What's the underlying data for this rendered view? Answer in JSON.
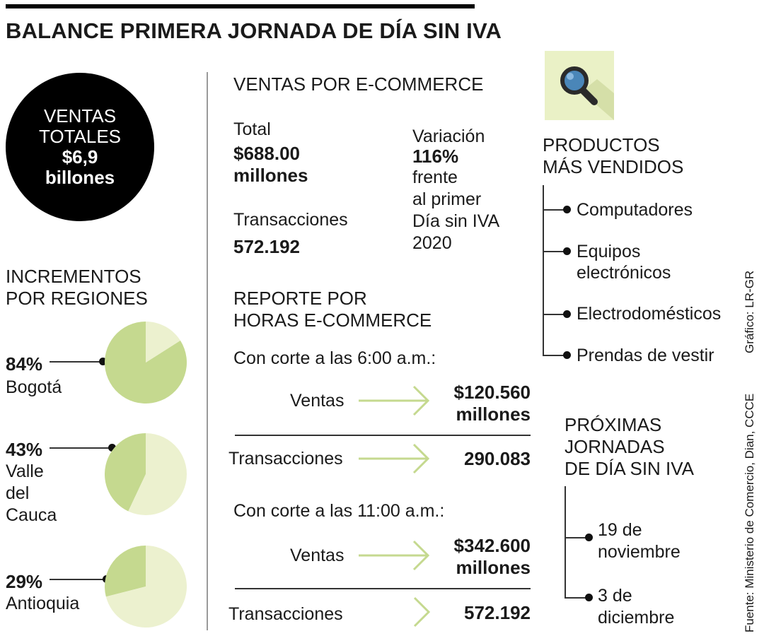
{
  "title": "BALANCE PRIMERA JORNADA DE DÍA SIN IVA",
  "total_sales": {
    "line1": "VENTAS",
    "line2": "TOTALES",
    "amount": "$6,9",
    "unit": "billones"
  },
  "regions": {
    "heading_1": "INCREMENTOS",
    "heading_2": "POR REGIONES",
    "items": [
      {
        "pct": "84%",
        "name_lines": [
          "Bogotá"
        ]
      },
      {
        "pct": "43%",
        "name_lines": [
          "Valle",
          "del",
          "Cauca"
        ]
      },
      {
        "pct": "29%",
        "name_lines": [
          "Antioquia"
        ]
      }
    ]
  },
  "chart_data": {
    "type": "pie",
    "series": [
      {
        "name": "Bogotá",
        "values": [
          84,
          16
        ]
      },
      {
        "name": "Valle del Cauca",
        "values": [
          43,
          57
        ]
      },
      {
        "name": "Antioquia",
        "values": [
          29,
          71
        ]
      }
    ],
    "colors": {
      "increment": "#c5d98f",
      "rest": "#ecf1cf"
    }
  },
  "ecommerce": {
    "heading": "VENTAS POR E-COMMERCE",
    "total_label": "Total",
    "total_value_1": "$688.00",
    "total_value_2": "millones",
    "transactions_label": "Transacciones",
    "transactions_value": "572.192",
    "variation_label": "Variación",
    "variation_value": "116%",
    "variation_text": [
      "frente",
      "al primer",
      "Día sin IVA",
      "2020"
    ]
  },
  "hourly": {
    "heading_1": "REPORTE POR",
    "heading_2": "HORAS E-COMMERCE",
    "blocks": [
      {
        "cutoff": "Con corte a las 6:00 a.m.:",
        "sales_label": "Ventas",
        "sales_value_1": "$120.560",
        "sales_value_2": "millones",
        "transactions_label": "Transacciones",
        "transactions_value": "290.083"
      },
      {
        "cutoff": "Con corte a las 11:00 a.m.:",
        "sales_label": "Ventas",
        "sales_value_1": "$342.600",
        "sales_value_2": "millones",
        "transactions_label": "Transacciones",
        "transactions_value": "572.192"
      }
    ]
  },
  "products": {
    "icon": "magnifier-icon",
    "heading_1": "PRODUCTOS",
    "heading_2": "MÁS VENDIDOS",
    "items": [
      [
        "Computadores"
      ],
      [
        "Equipos",
        "electrónicos"
      ],
      [
        "Electrodomésticos"
      ],
      [
        "Prendas de vestir"
      ]
    ]
  },
  "upcoming": {
    "heading_1": "PRÓXIMAS",
    "heading_2": "JORNADAS",
    "heading_3": "DE DÍA SIN IVA",
    "dates": [
      [
        "19 de",
        "noviembre"
      ],
      [
        "3 de",
        "diciembre"
      ]
    ]
  },
  "credit": "Gráfico: LR-GR",
  "source": "Fuente: Ministerio de Comercio, Dian, CCCE",
  "colors": {
    "arrow": "#c5d98f",
    "tile": "#eaf1c6",
    "circle": "#000000"
  }
}
